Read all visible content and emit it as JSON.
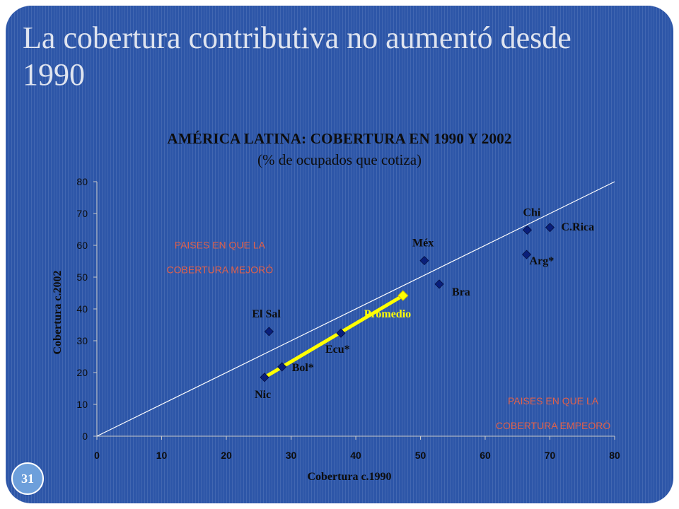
{
  "slide": {
    "title": "La cobertura contributiva no aumentó desde 1990",
    "page_number": "31"
  },
  "colors": {
    "background": "#2d56a8",
    "marker": "#0a1f7a",
    "diagonal": "#ffffff",
    "average_line": "#ffff00",
    "region_label": "#e0604a"
  },
  "chart_data": {
    "type": "scatter",
    "title": "AMÉRICA LATINA: COBERTURA EN 1990 Y 2002",
    "subtitle": "(% de ocupados que cotiza)",
    "xlabel": "Cobertura c.1990",
    "ylabel": "Cobertura c.2002",
    "xlim": [
      0,
      80
    ],
    "ylim": [
      0,
      80
    ],
    "x_ticks": [
      0,
      10,
      20,
      30,
      40,
      50,
      60,
      70,
      80
    ],
    "y_ticks": [
      0,
      10,
      20,
      30,
      40,
      50,
      60,
      70,
      80
    ],
    "grid": false,
    "points": [
      {
        "label": "Nic",
        "x": 25.9,
        "y": 18.5
      },
      {
        "label": "Bol*",
        "x": 28.6,
        "y": 21.8
      },
      {
        "label": "Ecu*",
        "x": 37.7,
        "y": 32.4
      },
      {
        "label": "El Sal",
        "x": 26.6,
        "y": 32.9
      },
      {
        "label": "Méx",
        "x": 50.6,
        "y": 55.2
      },
      {
        "label": "Bra",
        "x": 52.9,
        "y": 47.8
      },
      {
        "label": "Arg*",
        "x": 66.4,
        "y": 57.1
      },
      {
        "label": "Chi",
        "x": 66.5,
        "y": 64.8
      },
      {
        "label": "C.Rica",
        "x": 70.0,
        "y": 65.6
      }
    ],
    "average": {
      "label": "Promedio",
      "start": {
        "x": 25.9,
        "y": 18.5
      },
      "end": {
        "x": 47.3,
        "y": 44.2
      }
    },
    "reference_line": {
      "from": [
        0,
        0
      ],
      "to": [
        80,
        80
      ]
    },
    "annotations": [
      {
        "lines": [
          "PAISES EN QUE LA",
          "COBERTURA MEJORÓ"
        ],
        "x": 19,
        "y": 59
      },
      {
        "lines": [
          "PAISES EN QUE LA",
          "COBERTURA EMPEORÓ"
        ],
        "x": 70.5,
        "y": 10
      }
    ]
  }
}
